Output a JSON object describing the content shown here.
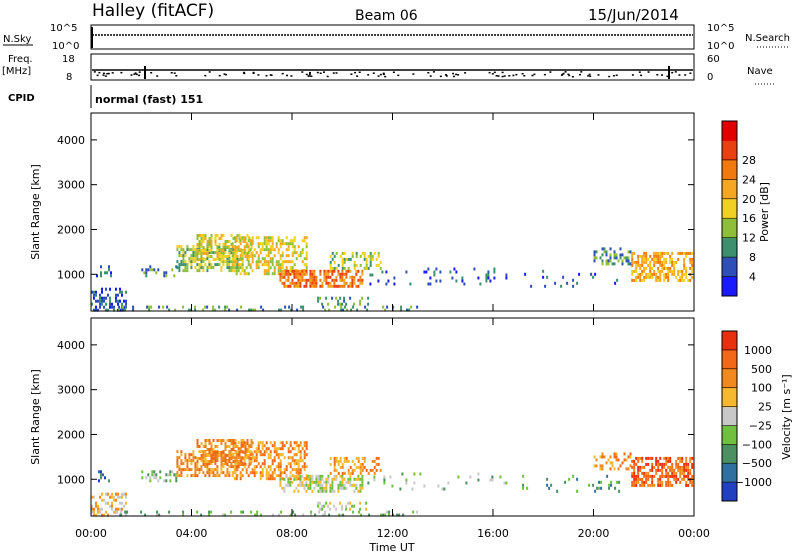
{
  "header": {
    "station": "Halley (fitACF)",
    "beam": "Beam 06",
    "date": "15/Jun/2014"
  },
  "strips": {
    "nsky_label": "N.Sky",
    "nsky_ticks": [
      "10^5",
      "10^0"
    ],
    "nsearch_label": "N.Search",
    "nsearch_ticks": [
      "10^5",
      "10^0"
    ],
    "freq_label_1": "Freq.",
    "freq_label_2": "[MHz]",
    "freq_ticks": [
      "18",
      "8"
    ],
    "nave_label": "Nave",
    "nave_ticks": [
      "60",
      "0"
    ],
    "cpid_label": "CPID",
    "cpid_text": "normal (fast) 151"
  },
  "axes": {
    "ylabel": "Slant Range [km]",
    "xlabel": "Time UT",
    "y_ticks": [
      "1000",
      "2000",
      "3000",
      "4000"
    ],
    "x_ticks": [
      "00:00",
      "04:00",
      "08:00",
      "12:00",
      "16:00",
      "20:00",
      "00:00"
    ]
  },
  "colorbars": {
    "power": {
      "label": "Power [dB]",
      "ticks": [
        "4",
        "8",
        "12",
        "16",
        "20",
        "24",
        "28"
      ],
      "colors": [
        "#1a1aff",
        "#2f4fb8",
        "#3d8f6e",
        "#8fbf3a",
        "#f0d020",
        "#f5a623",
        "#f07a10",
        "#e84010",
        "#e00000"
      ]
    },
    "velocity": {
      "label": "Velocity [m s⁻¹]",
      "ticks": [
        "1000",
        "500",
        "100",
        "25",
        "−25",
        "−100",
        "−500",
        "−1000"
      ],
      "colors": [
        "#2040c0",
        "#3070a0",
        "#4a9060",
        "#70c040",
        "#c8c8c8",
        "#f5b830",
        "#f08a20",
        "#f06818",
        "#e83010"
      ]
    }
  },
  "chart_data": [
    {
      "type": "heatmap",
      "name": "power",
      "x_range_hours": [
        0,
        24
      ],
      "y_range_km": [
        180,
        4600
      ],
      "colorbar_ticks": [
        4,
        8,
        12,
        16,
        20,
        24,
        28
      ],
      "scatter_regions": [
        {
          "t0": 0.0,
          "t1": 1.4,
          "r0": 200,
          "r1": 700,
          "density": 0.45,
          "level": 1
        },
        {
          "t0": 0.2,
          "t1": 0.8,
          "r0": 950,
          "r1": 1200,
          "density": 0.35,
          "level": 1
        },
        {
          "t0": 2.0,
          "t1": 3.4,
          "r0": 950,
          "r1": 1200,
          "density": 0.35,
          "level": 2
        },
        {
          "t0": 3.4,
          "t1": 5.8,
          "r0": 1050,
          "r1": 1650,
          "density": 0.55,
          "level": 3
        },
        {
          "t0": 4.2,
          "t1": 6.4,
          "r0": 1300,
          "r1": 1900,
          "density": 0.5,
          "level": 4
        },
        {
          "t0": 5.6,
          "t1": 8.6,
          "r0": 1000,
          "r1": 1850,
          "density": 0.5,
          "level": 4
        },
        {
          "t0": 7.5,
          "t1": 10.8,
          "r0": 700,
          "r1": 1100,
          "density": 0.65,
          "level": 6
        },
        {
          "t0": 9.5,
          "t1": 11.5,
          "r0": 1100,
          "r1": 1500,
          "density": 0.4,
          "level": 3
        },
        {
          "t0": 9.0,
          "t1": 11.0,
          "r0": 300,
          "r1": 500,
          "density": 0.35,
          "level": 2
        },
        {
          "t0": 11.0,
          "t1": 16.5,
          "r0": 750,
          "r1": 1150,
          "density": 0.1,
          "level": 1
        },
        {
          "t0": 17.0,
          "t1": 21.0,
          "r0": 700,
          "r1": 1100,
          "density": 0.08,
          "level": 1
        },
        {
          "t0": 20.0,
          "t1": 21.5,
          "r0": 1200,
          "r1": 1600,
          "density": 0.4,
          "level": 2
        },
        {
          "t0": 21.5,
          "t1": 23.9,
          "r0": 850,
          "r1": 1500,
          "density": 0.6,
          "level": 5
        },
        {
          "t0": 1.0,
          "t1": 13.0,
          "r0": 200,
          "r1": 300,
          "density": 0.2,
          "level": 2
        }
      ]
    },
    {
      "type": "heatmap",
      "name": "velocity",
      "x_range_hours": [
        0,
        24
      ],
      "y_range_km": [
        180,
        4600
      ],
      "colorbar_ticks": [
        1000,
        500,
        100,
        25,
        -25,
        -100,
        -500,
        -1000
      ],
      "scatter_regions": [
        {
          "t0": 0.0,
          "t1": 1.4,
          "r0": 200,
          "r1": 700,
          "density": 0.45,
          "level": 5
        },
        {
          "t0": 0.2,
          "t1": 0.8,
          "r0": 950,
          "r1": 1200,
          "density": 0.35,
          "level": 1
        },
        {
          "t0": 2.0,
          "t1": 3.4,
          "r0": 950,
          "r1": 1200,
          "density": 0.35,
          "level": 3
        },
        {
          "t0": 3.4,
          "t1": 5.8,
          "r0": 1050,
          "r1": 1650,
          "density": 0.55,
          "level": 6
        },
        {
          "t0": 4.2,
          "t1": 6.4,
          "r0": 1300,
          "r1": 1900,
          "density": 0.5,
          "level": 6
        },
        {
          "t0": 5.6,
          "t1": 8.6,
          "r0": 1000,
          "r1": 1850,
          "density": 0.5,
          "level": 6
        },
        {
          "t0": 7.5,
          "t1": 10.8,
          "r0": 700,
          "r1": 1100,
          "density": 0.55,
          "level": 4
        },
        {
          "t0": 9.5,
          "t1": 11.5,
          "r0": 1100,
          "r1": 1500,
          "density": 0.4,
          "level": 6
        },
        {
          "t0": 9.0,
          "t1": 11.0,
          "r0": 300,
          "r1": 500,
          "density": 0.35,
          "level": 4
        },
        {
          "t0": 11.0,
          "t1": 16.5,
          "r0": 750,
          "r1": 1150,
          "density": 0.1,
          "level": 3
        },
        {
          "t0": 17.0,
          "t1": 21.0,
          "r0": 700,
          "r1": 1100,
          "density": 0.08,
          "level": 2
        },
        {
          "t0": 20.0,
          "t1": 21.5,
          "r0": 1200,
          "r1": 1600,
          "density": 0.4,
          "level": 6
        },
        {
          "t0": 21.5,
          "t1": 23.9,
          "r0": 850,
          "r1": 1500,
          "density": 0.6,
          "level": 7
        },
        {
          "t0": 1.0,
          "t1": 13.0,
          "r0": 200,
          "r1": 300,
          "density": 0.2,
          "level": 3
        }
      ]
    }
  ]
}
